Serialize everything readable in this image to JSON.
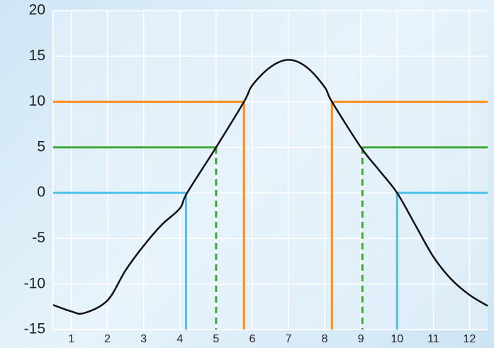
{
  "chart_data": {
    "type": "line",
    "x": [
      0.5,
      1,
      1.35,
      2,
      2.5,
      3,
      3.5,
      4,
      4.2,
      5,
      5.77,
      6,
      6.5,
      7,
      7.5,
      8,
      8.2,
      9,
      9.5,
      10,
      10.5,
      11,
      11.5,
      12,
      12.5
    ],
    "series": [
      {
        "color": "#111111",
        "values": [
          -12.3,
          -13,
          -13.2,
          -11.8,
          -8.5,
          -5.8,
          -3.5,
          -1.7,
          0,
          5,
          10,
          11.8,
          13.8,
          14.6,
          13.8,
          11.6,
          10,
          5,
          2.5,
          0,
          -3.5,
          -7,
          -9.5,
          -11.2,
          -12.4
        ]
      }
    ],
    "thresholds": [
      {
        "y": 10,
        "x_left": 5.77,
        "x_right": 8.2,
        "color": "#ff8c1a",
        "dashed": false
      },
      {
        "y": 5,
        "x_left": 5,
        "x_right": 9.04,
        "color": "#3aaa35",
        "dashed": true
      },
      {
        "y": 0,
        "x_left": 4.17,
        "x_right": 10,
        "color": "#4fc0e8",
        "dashed": false
      }
    ],
    "xlim": [
      0.5,
      12.5
    ],
    "xticks": [
      1,
      2,
      3,
      4,
      5,
      6,
      7,
      8,
      9,
      10,
      11,
      12
    ],
    "ylim": [
      -15,
      20
    ],
    "yticks": [
      -15,
      -10,
      -5,
      0,
      5,
      10,
      15,
      20
    ],
    "grid": true
  }
}
